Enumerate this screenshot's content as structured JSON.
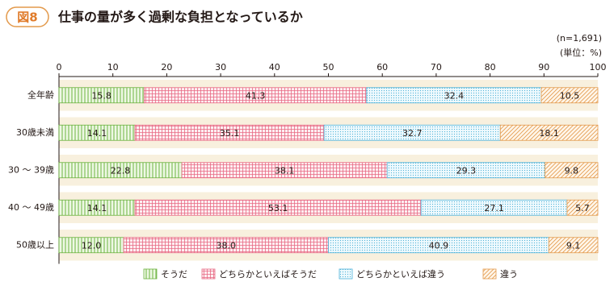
{
  "figure_label": "図8",
  "chart_data": {
    "type": "stacked-barh",
    "title": "仕事の量が多く過剰な負担となっているか",
    "notes": [
      "(n=1,691)",
      "(単位：%)"
    ],
    "categories": [
      "全年齢",
      "30歳未満",
      "30 ～ 39歳",
      "40 ～ 49歳",
      "50歳以上"
    ],
    "series": [
      {
        "name": "そうだ",
        "color": "#6cb33f",
        "values": [
          15.8,
          14.1,
          22.8,
          14.1,
          12
        ],
        "value_labels": [
          "15.8",
          "14.1",
          "22.8",
          "14.1",
          "12.0"
        ]
      },
      {
        "name": "どちらかといえばそうだ",
        "color": "#e86a84",
        "values": [
          41.3,
          35.1,
          38.1,
          53.1,
          38
        ],
        "value_labels": [
          "41.3",
          "35.1",
          "38.1",
          "53.1",
          "38.0"
        ]
      },
      {
        "name": "どちらかといえば違う",
        "color": "#4fb3d9",
        "values": [
          32.4,
          32.7,
          29.3,
          27.1,
          40.9
        ]
      },
      {
        "name": "違う",
        "color": "#e39a4c",
        "values": [
          10.5,
          18.1,
          9.8,
          5.7,
          9.1
        ]
      }
    ],
    "xlim": [
      0,
      100
    ],
    "xticks": [
      0,
      10,
      20,
      30,
      40,
      50,
      60,
      70,
      80,
      90,
      100
    ]
  }
}
